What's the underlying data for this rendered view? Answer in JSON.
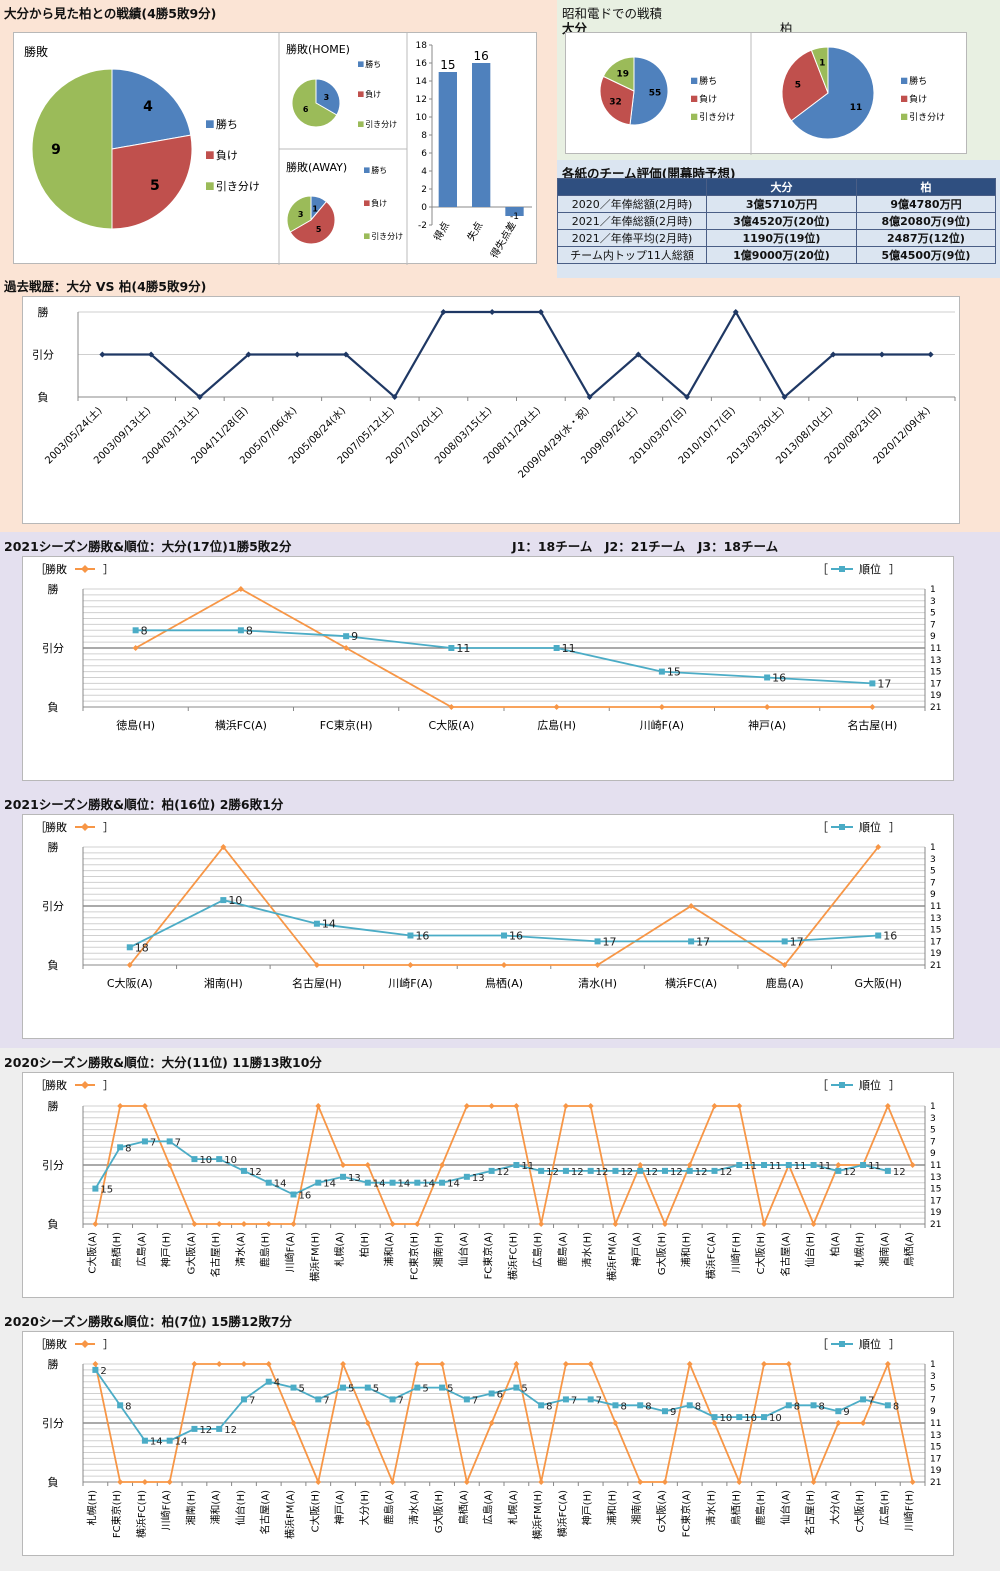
{
  "colors": {
    "win": "#4f81bd",
    "loss": "#c0504d",
    "draw": "#9bbb59",
    "result_line": "#f79646",
    "rank_line": "#4bacc6",
    "history_line": "#1f3864",
    "bar": "#4f81bd"
  },
  "record": {
    "title": "大分から見た柏との戦績(4勝5敗9分)",
    "legend": [
      "勝ち",
      "負け",
      "引き分け"
    ],
    "total": {
      "title": "勝敗",
      "values": [
        4,
        5,
        9
      ]
    },
    "home": {
      "title": "勝敗(HOME)",
      "values": [
        3,
        0,
        6
      ]
    },
    "away": {
      "title": "勝敗(AWAY)",
      "values": [
        1,
        5,
        3
      ]
    },
    "bar": {
      "categories": [
        "得点",
        "失点",
        "得失点差"
      ],
      "values": [
        15,
        16,
        -1
      ],
      "ylim": [
        -2,
        18
      ],
      "ticks": [
        "18",
        "16",
        "14",
        "12",
        "10",
        "8",
        "6",
        "4",
        "2",
        "0",
        "-2"
      ]
    }
  },
  "showa": {
    "title": "昭和電ドでの戦積",
    "legend": [
      "勝ち",
      "負け",
      "引き分け"
    ],
    "oita": {
      "title": "大分",
      "values": [
        55,
        32,
        19
      ]
    },
    "kashiwa": {
      "title": "柏",
      "values": [
        11,
        5,
        1
      ]
    }
  },
  "evaluation": {
    "title": "各紙のチーム評価(開幕時予想)",
    "headers": [
      "",
      "大分",
      "柏"
    ],
    "rows": [
      {
        "label": "2020／年俸総額(2月時)",
        "oita": "3億5710万円",
        "kashiwa": "9億4780万円"
      },
      {
        "label": "2021／年俸総額(2月時)",
        "oita": "3億4520万(20位)",
        "kashiwa": "8億2080万(9位)"
      },
      {
        "label": "2021／年俸平均(2月時)",
        "oita": "1190万(19位)",
        "kashiwa": "2487万(12位)"
      },
      {
        "label": "チーム内トップ11人総額",
        "oita": "1億9000万(20位)",
        "kashiwa": "5億4500万(9位)"
      }
    ]
  },
  "chart_data": [
    {
      "type": "line",
      "title": "過去戦歴：大分 VS 柏(4勝5敗9分)",
      "y_labels": [
        "勝",
        "引分",
        "負"
      ],
      "categories": [
        "2003/05/24(土)",
        "2003/09/13(土)",
        "2004/03/13(土)",
        "2004/11/28(日)",
        "2005/07/06(水)",
        "2005/08/24(水)",
        "2007/05/12(土)",
        "2007/10/20(土)",
        "2008/03/15(土)",
        "2008/11/29(土)",
        "2009/04/29(水・祝)",
        "2009/09/26(土)",
        "2010/03/07(日)",
        "2010/10/17(日)",
        "2013/03/30(土)",
        "2013/08/10(土)",
        "2020/08/23(日)",
        "2020/12/09(水)"
      ],
      "values": [
        0,
        0,
        -1,
        0,
        0,
        0,
        -1,
        1,
        1,
        1,
        -1,
        0,
        -1,
        1,
        -1,
        0,
        0,
        0
      ]
    },
    {
      "type": "line",
      "title": "2021シーズン勝敗&順位：大分(17位)1勝5敗2分",
      "note": "J1：18チーム　J2：21チーム　J3：18チーム",
      "legend_result": "勝敗",
      "legend_rank": "順位",
      "y_labels": [
        "勝",
        "引分",
        "負"
      ],
      "rank_ticks": [
        "1",
        "3",
        "5",
        "7",
        "9",
        "11",
        "13",
        "15",
        "17",
        "19",
        "21"
      ],
      "categories": [
        "徳島(H)",
        "横浜FC(A)",
        "FC東京(H)",
        "C大阪(A)",
        "広島(H)",
        "川崎F(A)",
        "神戸(A)",
        "名古屋(H)"
      ],
      "results": [
        0,
        1,
        0,
        -1,
        -1,
        -1,
        -1,
        -1
      ],
      "ranks": [
        8,
        8,
        9,
        11,
        11,
        15,
        16,
        17
      ]
    },
    {
      "type": "line",
      "title": "2021シーズン勝敗&順位：柏(16位) 2勝6敗1分",
      "legend_result": "勝敗",
      "legend_rank": "順位",
      "y_labels": [
        "勝",
        "引分",
        "負"
      ],
      "rank_ticks": [
        "1",
        "3",
        "5",
        "7",
        "9",
        "11",
        "13",
        "15",
        "17",
        "19",
        "21"
      ],
      "categories": [
        "C大阪(A)",
        "湘南(H)",
        "名古屋(H)",
        "川崎F(A)",
        "鳥栖(A)",
        "清水(H)",
        "横浜FC(A)",
        "鹿島(A)",
        "G大阪(H)"
      ],
      "results": [
        -1,
        1,
        -1,
        -1,
        -1,
        -1,
        0,
        -1,
        1
      ],
      "ranks": [
        18,
        10,
        14,
        16,
        16,
        17,
        17,
        17,
        16
      ]
    },
    {
      "type": "line",
      "title": "2020シーズン勝敗&順位：大分(11位) 11勝13敗10分",
      "legend_result": "勝敗",
      "legend_rank": "順位",
      "y_labels": [
        "勝",
        "引分",
        "負"
      ],
      "rank_ticks": [
        "1",
        "3",
        "5",
        "7",
        "9",
        "11",
        "13",
        "15",
        "17",
        "19",
        "21"
      ],
      "categories": [
        "C大阪(A)",
        "鳥栖(H)",
        "広島(A)",
        "神戸(H)",
        "G大阪(A)",
        "名古屋(H)",
        "清水(A)",
        "鹿島(H)",
        "川崎F(A)",
        "横浜FM(H)",
        "札幌(A)",
        "柏(H)",
        "浦和(A)",
        "FC東京(H)",
        "湘南(H)",
        "仙台(A)",
        "FC東京(A)",
        "横浜FC(H)",
        "広島(H)",
        "鹿島(A)",
        "清水(H)",
        "横浜FM(A)",
        "神戸(A)",
        "G大阪(H)",
        "浦和(H)",
        "横浜FC(A)",
        "川崎F(H)",
        "C大阪(H)",
        "名古屋(A)",
        "仙台(H)",
        "柏(A)",
        "札幌(H)",
        "湘南(A)",
        "鳥栖(A)"
      ],
      "results": [
        -1,
        1,
        1,
        0,
        -1,
        -1,
        -1,
        -1,
        -1,
        1,
        0,
        0,
        -1,
        -1,
        0,
        1,
        1,
        1,
        -1,
        1,
        1,
        -1,
        0,
        -1,
        0,
        1,
        1,
        -1,
        0,
        -1,
        0,
        0,
        1,
        0
      ],
      "ranks": [
        15,
        8,
        7,
        7,
        10,
        10,
        12,
        14,
        16,
        14,
        13,
        14,
        14,
        14,
        14,
        13,
        12,
        11,
        12,
        12,
        12,
        12,
        12,
        12,
        12,
        12,
        11,
        11,
        11,
        11,
        12,
        11,
        12,
        null
      ]
    },
    {
      "type": "line",
      "title": "2020シーズン勝敗&順位：柏(7位) 15勝12敗7分",
      "legend_result": "勝敗",
      "legend_rank": "順位",
      "y_labels": [
        "勝",
        "引分",
        "負"
      ],
      "rank_ticks": [
        "1",
        "3",
        "5",
        "7",
        "9",
        "11",
        "13",
        "15",
        "17",
        "19",
        "21"
      ],
      "categories": [
        "札幌(H)",
        "FC東京(H)",
        "横浜FC(H)",
        "川崎F(A)",
        "湘南(H)",
        "浦和(A)",
        "仙台(H)",
        "名古屋(A)",
        "横浜FM(A)",
        "C大阪(H)",
        "神戸(A)",
        "大分(H)",
        "鹿島(A)",
        "清水(A)",
        "G大阪(H)",
        "鳥栖(A)",
        "広島(A)",
        "札幌(A)",
        "横浜FM(H)",
        "横浜FC(A)",
        "神戸(H)",
        "浦和(H)",
        "湘南(A)",
        "G大阪(A)",
        "FC東京(A)",
        "清水(H)",
        "鳥栖(H)",
        "鹿島(H)",
        "仙台(A)",
        "名古屋(H)",
        "大分(A)",
        "C大阪(H)",
        "広島(H)",
        "川崎F(H)"
      ],
      "results": [
        1,
        -1,
        -1,
        -1,
        1,
        1,
        1,
        1,
        0,
        -1,
        1,
        0,
        -1,
        1,
        1,
        -1,
        0,
        1,
        -1,
        1,
        1,
        0,
        -1,
        -1,
        1,
        0,
        -1,
        1,
        1,
        -1,
        0,
        0,
        1,
        -1
      ],
      "ranks": [
        2,
        8,
        14,
        14,
        12,
        12,
        7,
        4,
        5,
        7,
        5,
        5,
        7,
        5,
        5,
        7,
        6,
        5,
        8,
        7,
        7,
        8,
        8,
        9,
        8,
        10,
        10,
        10,
        8,
        8,
        9,
        7,
        8,
        null
      ]
    }
  ]
}
